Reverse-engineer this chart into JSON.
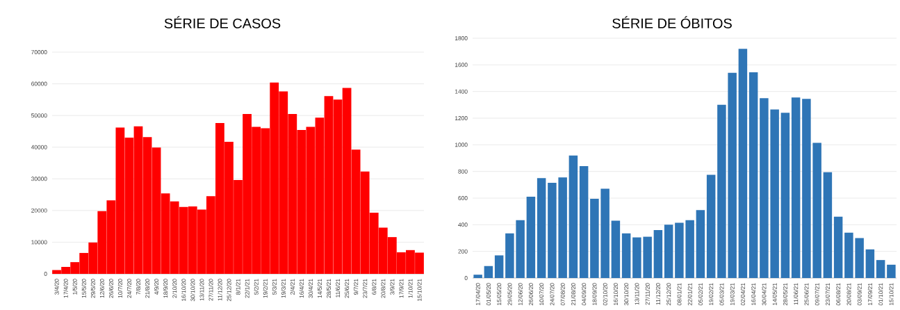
{
  "chart_data": [
    {
      "type": "bar",
      "title": "SÉRIE DE CASOS",
      "categories": [
        "3/4/20",
        "17/4/20",
        "1/5/20",
        "15/5/20",
        "29/5/20",
        "12/6/20",
        "26/6/20",
        "10/7/20",
        "24/7/20",
        "7/8/20",
        "21/8/20",
        "4/9/20",
        "18/9/20",
        "2/10/20",
        "16/10/20",
        "30/10/20",
        "13/11/20",
        "27/11/20",
        "11/12/20",
        "25/12/20",
        "8/1/21",
        "22/1/21",
        "5/2/21",
        "19/2/21",
        "5/3/21",
        "19/3/21",
        "2/4/21",
        "16/4/21",
        "30/4/21",
        "14/5/21",
        "28/5/21",
        "11/6/21",
        "25/6/21",
        "9/7/21",
        "23/7/21",
        "6/8/21",
        "20/8/21",
        "3/9/21",
        "17/9/21",
        "1/10/21",
        "15/10/21"
      ],
      "values": [
        1200,
        2200,
        3700,
        6600,
        9900,
        19800,
        23200,
        46200,
        43000,
        46600,
        43200,
        39900,
        25400,
        22900,
        21100,
        21300,
        20300,
        24500,
        47600,
        41700,
        29600,
        50500,
        46400,
        46000,
        60400,
        57600,
        50500,
        45400,
        46400,
        49300,
        56100,
        55000,
        58700,
        39200,
        32300,
        19300,
        14600,
        11600,
        6800,
        7500,
        6700
      ],
      "color": "#ff0000",
      "ylim": [
        0,
        70000
      ],
      "yticks": [
        0,
        10000,
        20000,
        30000,
        40000,
        50000,
        60000,
        70000
      ],
      "grid": "y"
    },
    {
      "type": "bar",
      "title": "SÉRIE DE ÓBITOS",
      "categories": [
        "17/04/20",
        "01/05/20",
        "15/05/20",
        "29/05/20",
        "12/06/20",
        "26/06/20",
        "10/07/20",
        "24/07/20",
        "07/08/20",
        "21/08/20",
        "04/09/20",
        "18/09/20",
        "02/10/20",
        "16/10/20",
        "30/10/20",
        "13/11/20",
        "27/11/20",
        "11/12/20",
        "25/12/20",
        "08/01/21",
        "22/01/21",
        "05/02/21",
        "19/02/21",
        "05/03/21",
        "19/03/21",
        "02/04/21",
        "16/04/21",
        "30/04/21",
        "14/05/21",
        "28/05/21",
        "11/06/21",
        "25/06/21",
        "09/07/21",
        "23/07/21",
        "06/08/21",
        "20/08/21",
        "03/09/21",
        "17/09/21",
        "01/10/21",
        "15/10/21"
      ],
      "values": [
        25,
        90,
        170,
        335,
        435,
        610,
        750,
        715,
        755,
        920,
        840,
        595,
        670,
        430,
        335,
        305,
        310,
        360,
        400,
        415,
        435,
        510,
        775,
        1300,
        1540,
        1720,
        1545,
        1350,
        1265,
        1240,
        1355,
        1345,
        1015,
        795,
        460,
        340,
        300,
        215,
        135,
        100
      ],
      "color": "#2e75b6",
      "ylim": [
        0,
        1800
      ],
      "yticks": [
        0,
        200,
        400,
        600,
        800,
        1000,
        1200,
        1400,
        1600,
        1800
      ],
      "grid": "y"
    }
  ]
}
